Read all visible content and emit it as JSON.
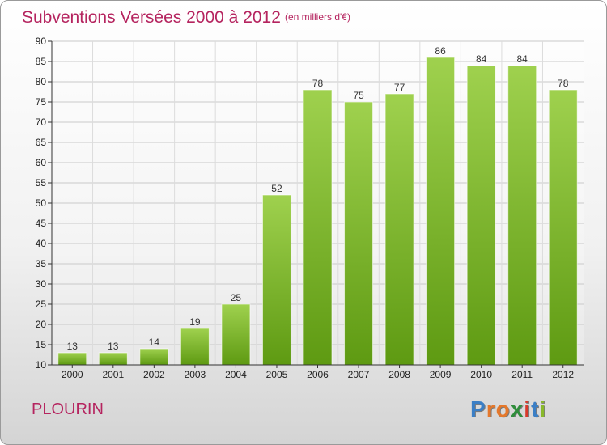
{
  "header": {
    "title": "Subventions Versées 2000 à 2012",
    "subtitle": "(en milliers d'€)"
  },
  "footer": {
    "commune": "PLOURIN",
    "brand": [
      "P",
      "r",
      "o",
      "x",
      "i",
      "t",
      "i"
    ],
    "brand_colors": [
      "#3b7fc6",
      "#e5782b",
      "#e5782b",
      "#2f8d3b",
      "#d8392b",
      "#3b7fc6",
      "#89b92b"
    ]
  },
  "chart_data": {
    "type": "bar",
    "title": "Subventions Versées 2000 à 2012",
    "subtitle": "(en milliers d'€)",
    "xlabel": "",
    "ylabel": "",
    "categories": [
      "2000",
      "2001",
      "2002",
      "2003",
      "2004",
      "2005",
      "2006",
      "2007",
      "2008",
      "2009",
      "2010",
      "2011",
      "2012"
    ],
    "values": [
      13,
      13,
      14,
      19,
      25,
      52,
      78,
      75,
      77,
      86,
      84,
      84,
      78
    ],
    "ylim": [
      10,
      90
    ],
    "yticks": [
      10,
      15,
      20,
      25,
      30,
      35,
      40,
      45,
      50,
      55,
      60,
      65,
      70,
      75,
      80,
      85,
      90
    ],
    "grid": true,
    "legend": "none",
    "bar_color_top": "#9fd14e",
    "bar_color_bottom": "#5e9a12"
  }
}
